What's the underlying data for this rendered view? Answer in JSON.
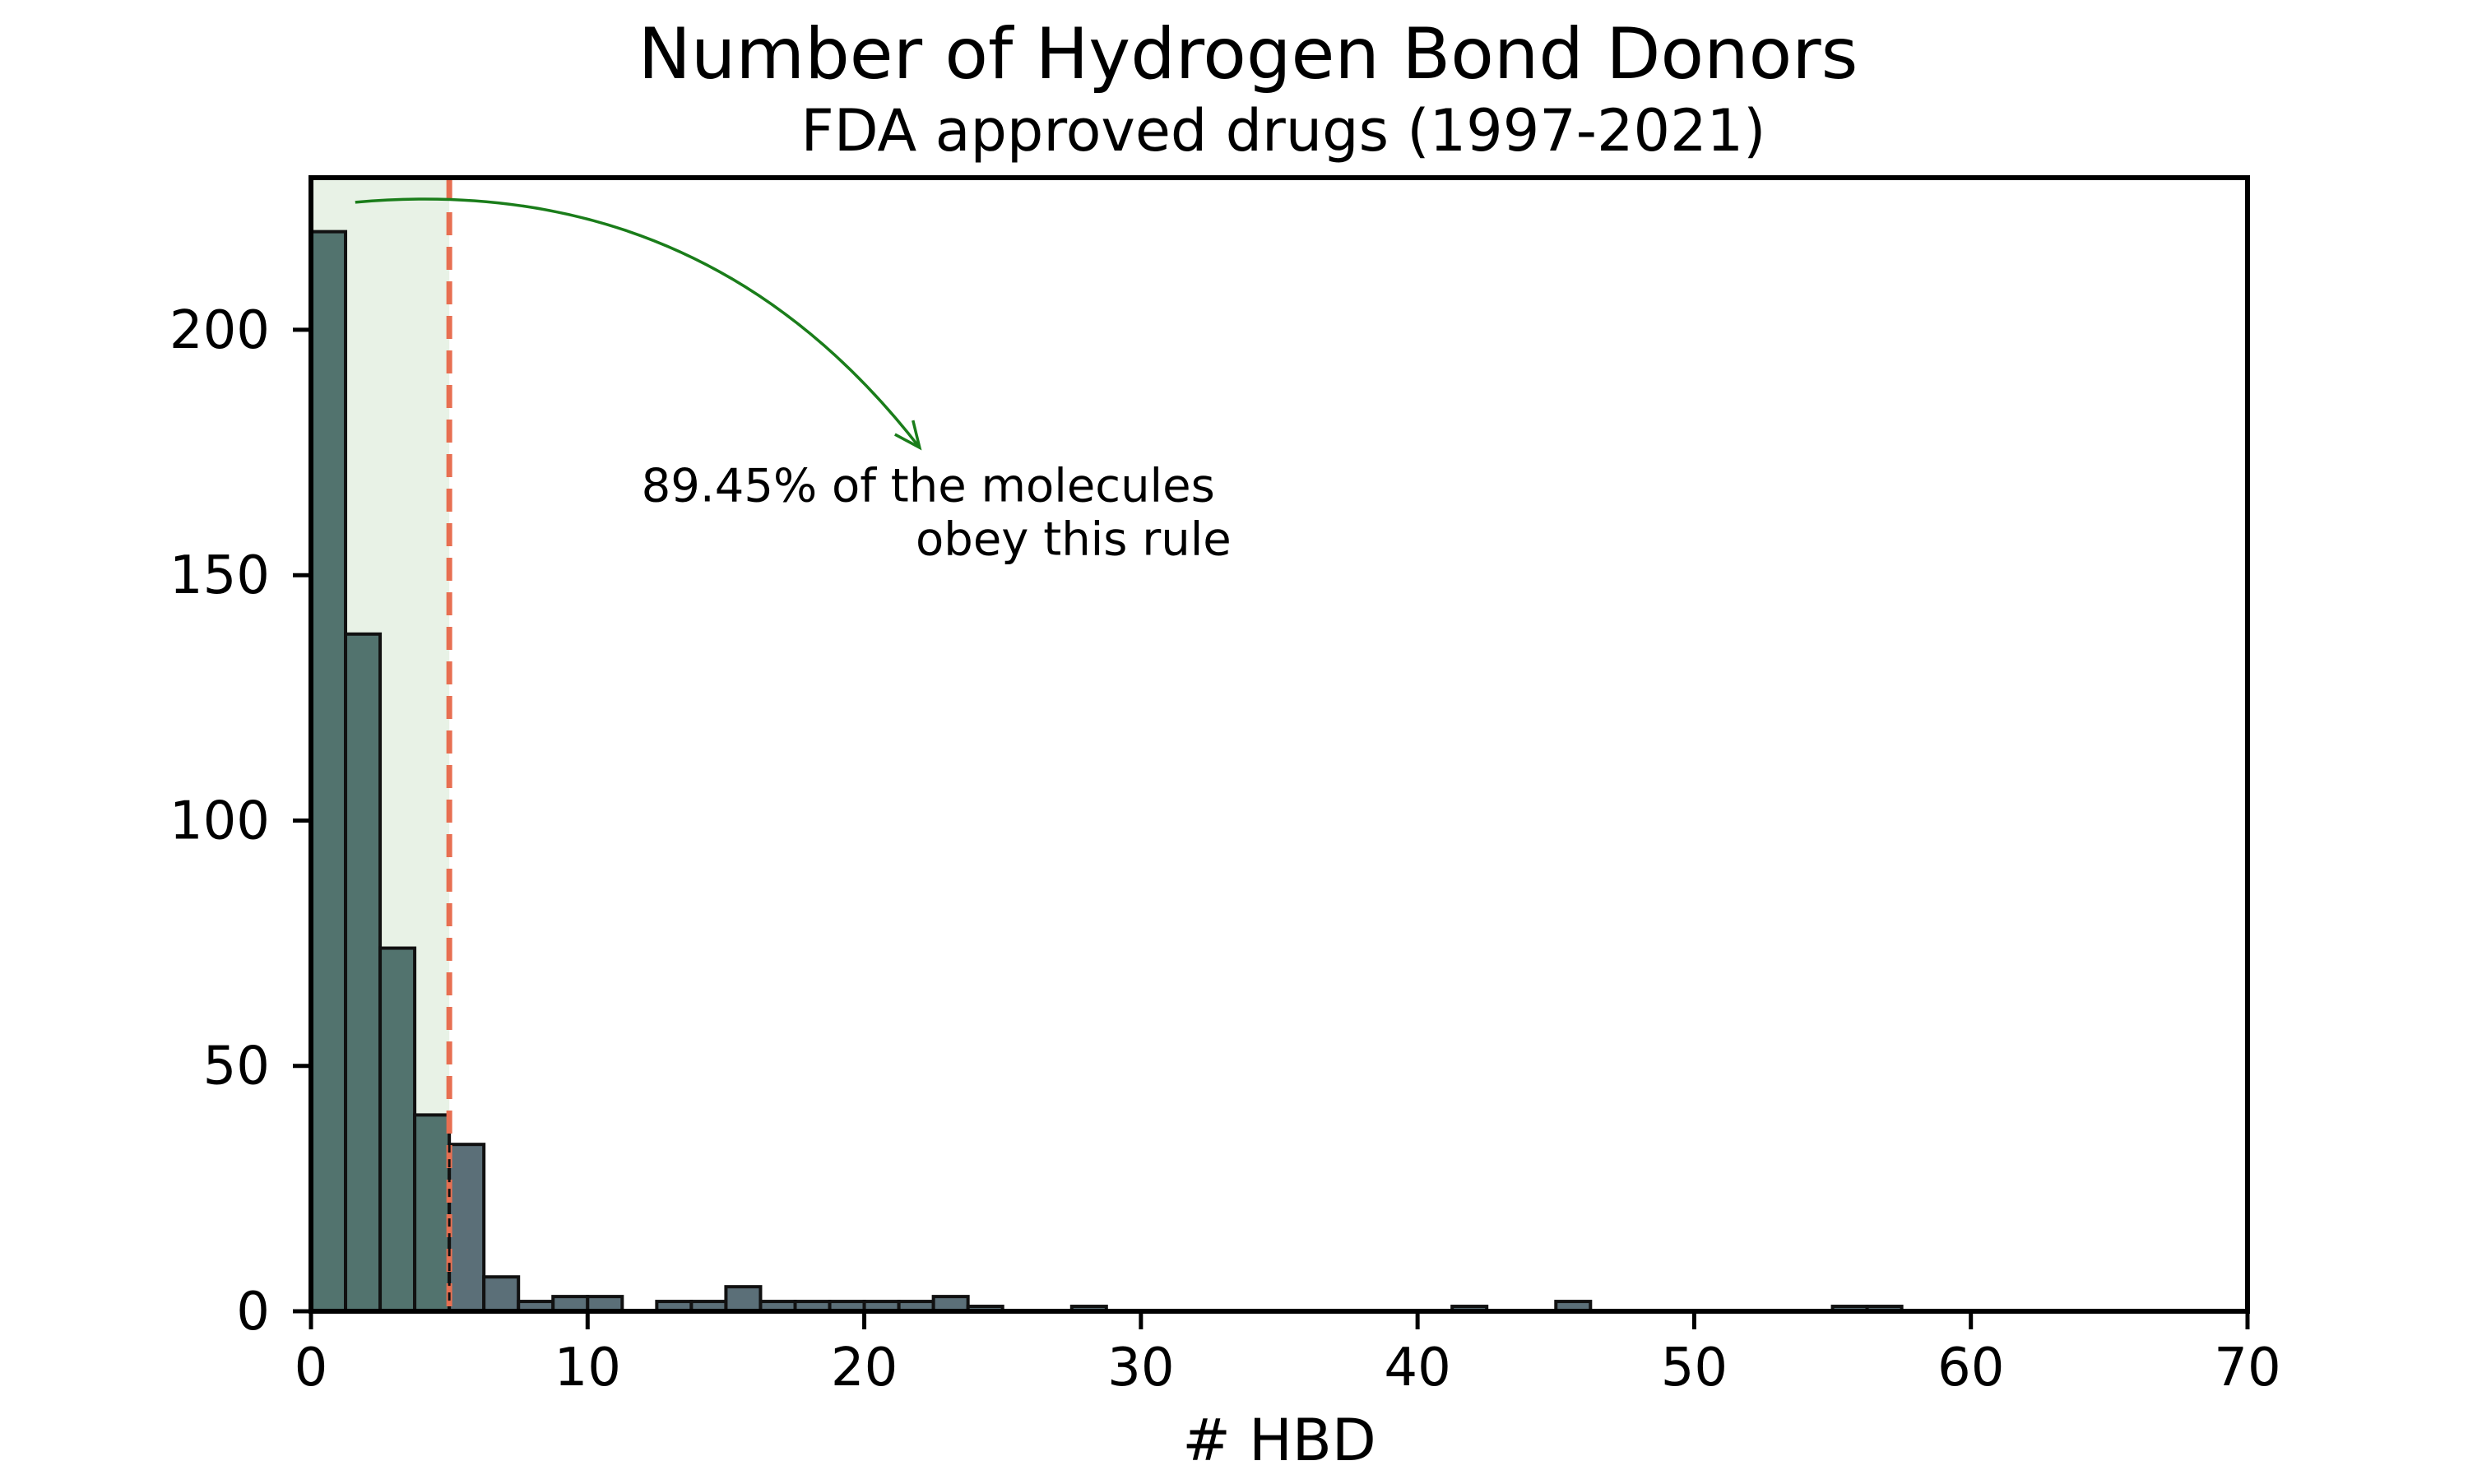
{
  "chart_data": {
    "type": "bar",
    "title": "Number of Hydrogen Bond Donors",
    "subtitle": "FDA approved drugs (1997-2021)",
    "xlabel": "# HBD",
    "ylabel": "",
    "xlim": [
      0,
      70
    ],
    "ylim": [
      0,
      231
    ],
    "x_ticks": [
      0,
      10,
      20,
      30,
      40,
      50,
      60,
      70
    ],
    "y_ticks": [
      0,
      50,
      100,
      150,
      200
    ],
    "bin_width": 1.25,
    "bins": [
      {
        "x0": 0.0,
        "value": 220
      },
      {
        "x0": 1.25,
        "value": 138
      },
      {
        "x0": 2.5,
        "value": 74
      },
      {
        "x0": 3.75,
        "value": 40
      },
      {
        "x0": 5.0,
        "value": 34
      },
      {
        "x0": 6.25,
        "value": 7
      },
      {
        "x0": 7.5,
        "value": 2
      },
      {
        "x0": 8.75,
        "value": 3
      },
      {
        "x0": 10.0,
        "value": 3
      },
      {
        "x0": 12.5,
        "value": 2
      },
      {
        "x0": 13.75,
        "value": 2
      },
      {
        "x0": 15.0,
        "value": 5
      },
      {
        "x0": 16.25,
        "value": 2
      },
      {
        "x0": 17.5,
        "value": 2
      },
      {
        "x0": 18.75,
        "value": 2
      },
      {
        "x0": 20.0,
        "value": 2
      },
      {
        "x0": 21.25,
        "value": 2
      },
      {
        "x0": 22.5,
        "value": 3
      },
      {
        "x0": 23.75,
        "value": 1
      },
      {
        "x0": 27.5,
        "value": 1
      },
      {
        "x0": 41.25,
        "value": 1
      },
      {
        "x0": 45.0,
        "value": 2
      },
      {
        "x0": 55.0,
        "value": 1
      },
      {
        "x0": 56.25,
        "value": 1
      }
    ],
    "threshold": 5,
    "shaded_region": [
      0,
      5
    ],
    "annotation": {
      "lines": [
        "89.45% of the molecules",
        "obey this rule"
      ],
      "text_x": 22.5,
      "text_y": 165,
      "arrow_from": [
        1.6,
        226
      ],
      "arrow_to": [
        22,
        176
      ]
    },
    "grid": false,
    "legend": "none",
    "colors": {
      "bar_inside": "#52736e",
      "bar_outside": "#5b6f78",
      "bar_edge": "#111111",
      "threshold_line": "#e76f51",
      "shade": "#e8f2e6",
      "arrow": "#1a7d1a",
      "axis": "#000000"
    }
  }
}
